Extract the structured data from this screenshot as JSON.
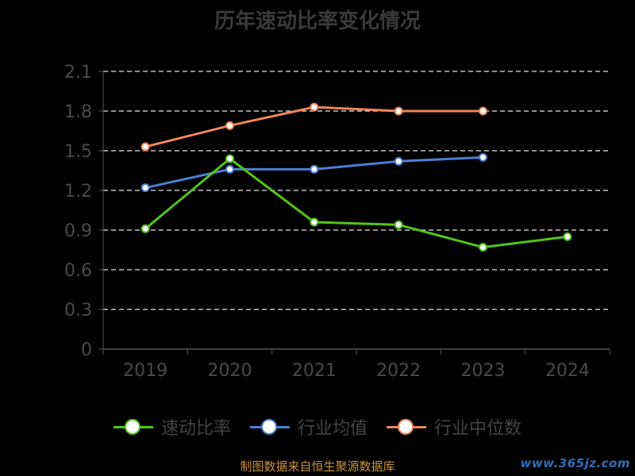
{
  "chart_data": {
    "type": "line",
    "title": "历年速动比率变化情况",
    "categories": [
      "2019",
      "2020",
      "2021",
      "2022",
      "2023",
      "2024"
    ],
    "ylim": [
      0,
      2.1
    ],
    "yticks": [
      "0",
      "0.3",
      "0.6",
      "0.9",
      "1.2",
      "1.5",
      "1.8",
      "2.1"
    ],
    "grid": true,
    "legend_position": "bottom",
    "series": [
      {
        "name": "速动比率",
        "color": "#52c41a",
        "values": [
          0.91,
          1.44,
          0.96,
          0.94,
          0.77,
          0.85
        ]
      },
      {
        "name": "行业均值",
        "color": "#4a7fd6",
        "values": [
          1.22,
          1.36,
          1.36,
          1.42,
          1.45,
          null
        ]
      },
      {
        "name": "行业中位数",
        "color": "#f0855a",
        "values": [
          1.53,
          1.69,
          1.83,
          1.8,
          1.8,
          null
        ]
      }
    ]
  },
  "footer": {
    "source": "制图数据来自恒生聚源数据库",
    "watermark": "www.365jz.com"
  }
}
